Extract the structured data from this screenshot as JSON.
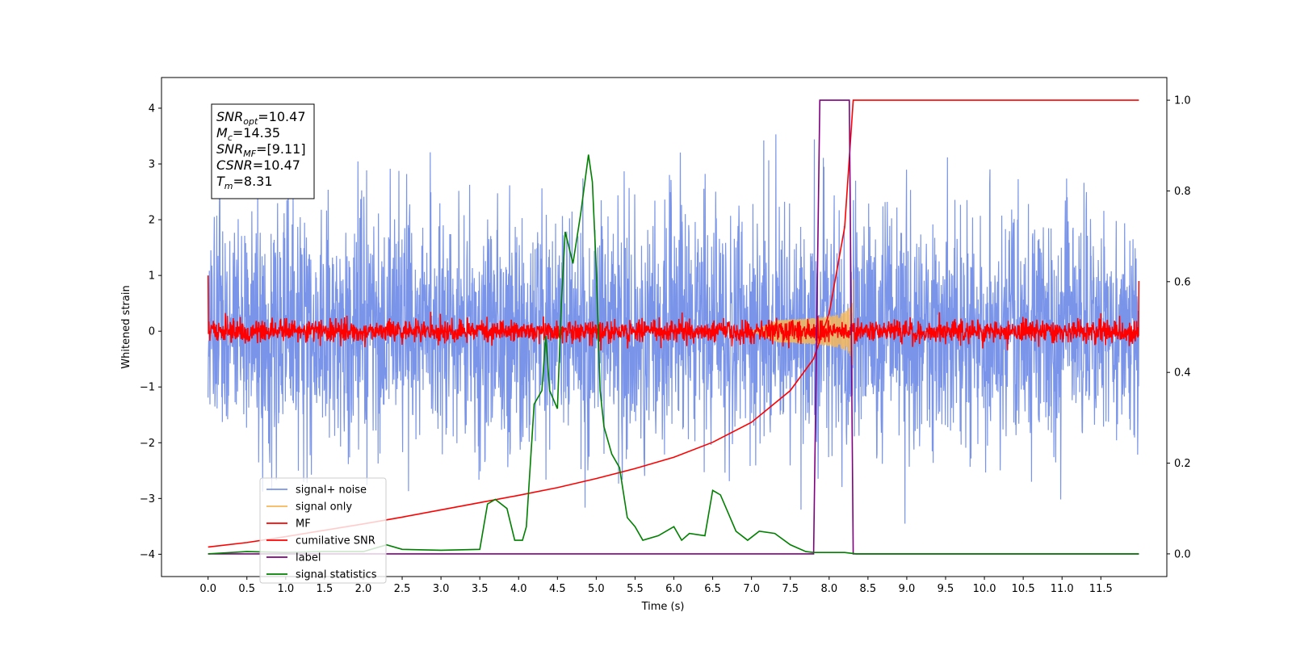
{
  "chart_data": {
    "type": "line",
    "xlabel": "Time (s)",
    "ylabel": "Whitened strain",
    "xlim": [
      -0.6,
      12.35
    ],
    "ylim": [
      -4.4,
      4.55
    ],
    "y2lim": [
      -0.05,
      1.05
    ],
    "x_ticks": [
      0.0,
      0.5,
      1.0,
      1.5,
      2.0,
      2.5,
      3.0,
      3.5,
      4.0,
      4.5,
      5.0,
      5.5,
      6.0,
      6.5,
      7.0,
      7.5,
      8.0,
      8.5,
      9.0,
      9.5,
      10.0,
      10.5,
      11.0,
      11.5
    ],
    "x_tick_labels": [
      "0.0",
      "0.5",
      "1.0",
      "1.5",
      "2.0",
      "2.5",
      "3.0",
      "3.5",
      "4.0",
      "4.5",
      "5.0",
      "5.5",
      "6.0",
      "6.5",
      "7.0",
      "7.5",
      "8.0",
      "8.5",
      "9.0",
      "9.5",
      "10.0",
      "10.5",
      "11.0",
      "11.5"
    ],
    "y_ticks": [
      -4,
      -3,
      -2,
      -1,
      0,
      1,
      2,
      3,
      4
    ],
    "y_tick_labels": [
      "−4",
      "−3",
      "−2",
      "−1",
      "0",
      "1",
      "2",
      "3",
      "4"
    ],
    "y2_ticks": [
      0.0,
      0.2,
      0.4,
      0.6,
      0.8,
      1.0
    ],
    "y2_tick_labels": [
      "0.0",
      "0.2",
      "0.4",
      "0.6",
      "0.8",
      "1.0"
    ],
    "grid": false,
    "legend_position": "lower-left",
    "annotation": {
      "lines": [
        {
          "base": "SNR",
          "sub": "opt",
          "value": "=10.47"
        },
        {
          "base": "M",
          "sub": "c",
          "value": "=14.35"
        },
        {
          "base": "SNR",
          "sub": "MF",
          "value": "=[9.11]"
        },
        {
          "base": "CSNR",
          "sub": "",
          "value": "=10.47"
        },
        {
          "base": "T",
          "sub": "m",
          "value": "=8.31"
        }
      ]
    },
    "series": [
      {
        "name": "signal+ noise",
        "axis": "left",
        "color": "#7994e8",
        "kind": "noise",
        "x_range": [
          0.0,
          11.99
        ],
        "typical_amplitude": 1.1,
        "max": 4.15,
        "min": -3.95
      },
      {
        "name": "signal only",
        "axis": "left",
        "color": "#f5b75a",
        "kind": "chirp",
        "chirp_start": 7.0,
        "chirp_end": 8.31,
        "peak_amplitude": 0.95
      },
      {
        "name": "MF",
        "axis": "left",
        "color": "#ff0000",
        "kind": "noise",
        "x_range": [
          0.0,
          11.99
        ],
        "typical_amplitude": 0.1,
        "endpoints": [
          1.0,
          0.9
        ]
      },
      {
        "name": "cumilative SNR",
        "axis": "right",
        "color": "#ff0000",
        "kind": "line",
        "x": [
          0.0,
          0.5,
          1.0,
          1.5,
          2.0,
          2.5,
          3.0,
          3.5,
          4.0,
          4.5,
          5.0,
          5.5,
          6.0,
          6.5,
          7.0,
          7.5,
          7.8,
          8.0,
          8.2,
          8.31,
          8.35,
          9.0,
          10.0,
          11.0,
          11.99
        ],
        "values": [
          0.015,
          0.025,
          0.038,
          0.052,
          0.066,
          0.081,
          0.097,
          0.113,
          0.129,
          0.146,
          0.166,
          0.188,
          0.213,
          0.246,
          0.29,
          0.36,
          0.43,
          0.53,
          0.72,
          1.0,
          1.0,
          1.0,
          1.0,
          1.0,
          1.0
        ]
      },
      {
        "name": "label",
        "axis": "right",
        "color": "#800080",
        "kind": "line",
        "x": [
          0.0,
          7.8,
          7.88,
          8.26,
          8.31,
          11.99
        ],
        "values": [
          0.0,
          0.0,
          1.0,
          1.0,
          0.0,
          0.0
        ]
      },
      {
        "name": "signal statistics",
        "axis": "right",
        "color": "#008000",
        "kind": "line",
        "x": [
          0.0,
          0.5,
          1.0,
          1.5,
          2.0,
          2.3,
          2.5,
          3.0,
          3.5,
          3.6,
          3.7,
          3.85,
          3.95,
          4.05,
          4.1,
          4.2,
          4.3,
          4.35,
          4.4,
          4.5,
          4.55,
          4.6,
          4.7,
          4.8,
          4.9,
          4.95,
          5.0,
          5.05,
          5.1,
          5.2,
          5.3,
          5.4,
          5.5,
          5.6,
          5.8,
          5.9,
          6.0,
          6.1,
          6.2,
          6.4,
          6.5,
          6.6,
          6.7,
          6.8,
          6.95,
          7.1,
          7.3,
          7.5,
          7.7,
          7.8,
          8.0,
          8.2,
          8.35,
          9.0,
          10.0,
          11.0,
          11.99
        ],
        "values": [
          0.0,
          0.005,
          0.003,
          0.005,
          0.005,
          0.02,
          0.01,
          0.008,
          0.01,
          0.11,
          0.12,
          0.1,
          0.03,
          0.03,
          0.06,
          0.33,
          0.36,
          0.48,
          0.36,
          0.32,
          0.55,
          0.71,
          0.64,
          0.75,
          0.88,
          0.82,
          0.63,
          0.36,
          0.28,
          0.22,
          0.19,
          0.08,
          0.06,
          0.03,
          0.04,
          0.05,
          0.06,
          0.03,
          0.045,
          0.04,
          0.14,
          0.13,
          0.09,
          0.05,
          0.03,
          0.05,
          0.045,
          0.02,
          0.005,
          0.003,
          0.003,
          0.003,
          0.0,
          0.0,
          0.0,
          0.0,
          0.0
        ]
      }
    ]
  }
}
